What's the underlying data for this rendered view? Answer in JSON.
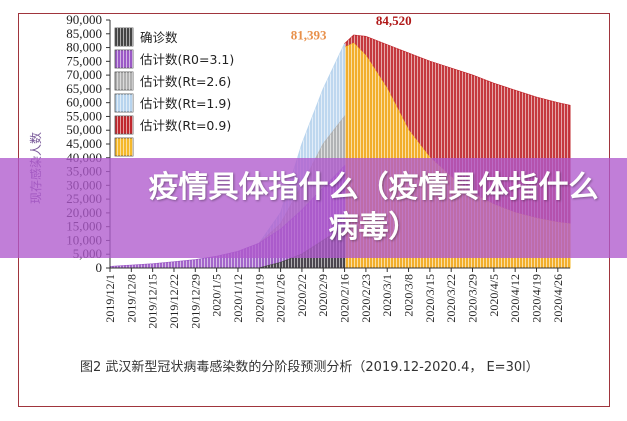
{
  "banner": {
    "line1": "疫情具体指什么（疫情具体指什么",
    "line2": "病毒）"
  },
  "caption": "图2  武汉新型冠状病毒感染数的分阶段预测分析（2019.12-2020.4， E=30l）",
  "chart_data": {
    "type": "bar",
    "title": "",
    "ylabel": "现存感染人数",
    "xlabel": "",
    "ylim": [
      0,
      90000
    ],
    "yticks": [
      "0",
      "5,000",
      "10,000",
      "15,000",
      "20,000",
      "25,000",
      "30,000",
      "35,000",
      "40,000",
      "45,000",
      "50,000",
      "55,000",
      "60,000",
      "65,000",
      "70,000",
      "75,000",
      "80,000",
      "85,000",
      "90,000"
    ],
    "xlim": [
      "2019-12-01",
      "2020-04-30"
    ],
    "xticks": [
      "2019/12/1",
      "2019/12/8",
      "2019/12/15",
      "2019/12/22",
      "2019/12/29",
      "2020/1/5",
      "2020/1/12",
      "2020/1/19",
      "2020/1/26",
      "2020/2/2",
      "2020/2/9",
      "2020/2/16",
      "2020/2/23",
      "2020/3/1",
      "2020/3/8",
      "2020/3/15",
      "2020/3/22",
      "2020/3/29",
      "2020/4/5",
      "2020/4/12",
      "2020/4/19",
      "2020/4/26"
    ],
    "annotations": [
      {
        "text": "81,393",
        "date": "2020-02-16",
        "value": 81393,
        "color": "#e8904a"
      },
      {
        "text": "84,520",
        "date": "2020-02-19",
        "value": 84520,
        "color": "#b01818"
      }
    ],
    "legend_placement": "top-left",
    "series": [
      {
        "name": "估计数(Rt=0.9)",
        "color": "#c0282e",
        "points": [
          [
            "2020-02-16",
            81393
          ],
          [
            "2020-02-19",
            84520
          ],
          [
            "2020-02-23",
            84000
          ],
          [
            "2020-03-01",
            81000
          ],
          [
            "2020-03-08",
            78000
          ],
          [
            "2020-03-15",
            75000
          ],
          [
            "2020-03-22",
            72500
          ],
          [
            "2020-03-29",
            70000
          ],
          [
            "2020-04-05",
            67000
          ],
          [
            "2020-04-12",
            64500
          ],
          [
            "2020-04-19",
            62000
          ],
          [
            "2020-04-26",
            60000
          ],
          [
            "2020-04-30",
            59000
          ]
        ]
      },
      {
        "name": "",
        "color": "#f5b82a",
        "points": [
          [
            "2020-02-16",
            80000
          ],
          [
            "2020-02-19",
            81500
          ],
          [
            "2020-02-23",
            77000
          ],
          [
            "2020-03-01",
            65000
          ],
          [
            "2020-03-08",
            50000
          ],
          [
            "2020-03-15",
            40000
          ],
          [
            "2020-03-22",
            33000
          ],
          [
            "2020-03-29",
            27000
          ],
          [
            "2020-04-05",
            23000
          ],
          [
            "2020-04-12",
            20000
          ],
          [
            "2020-04-19",
            18000
          ],
          [
            "2020-04-26",
            16500
          ],
          [
            "2020-04-30",
            16000
          ]
        ]
      },
      {
        "name": "估计数(Rt=1.9)",
        "color": "#b8d4ee",
        "points": [
          [
            "2020-01-19",
            9000
          ],
          [
            "2020-01-26",
            20000
          ],
          [
            "2020-02-02",
            45000
          ],
          [
            "2020-02-09",
            65000
          ],
          [
            "2020-02-16",
            81393
          ]
        ]
      },
      {
        "name": "估计数(Rt=2.6)",
        "color": "#b0b0b0",
        "points": [
          [
            "2020-01-19",
            9000
          ],
          [
            "2020-01-26",
            16000
          ],
          [
            "2020-02-02",
            30000
          ],
          [
            "2020-02-09",
            45000
          ],
          [
            "2020-02-16",
            55000
          ]
        ]
      },
      {
        "name": "估计数(R0=3.1)",
        "color": "#9b59c6",
        "points": [
          [
            "2019-12-01",
            500
          ],
          [
            "2019-12-08",
            1000
          ],
          [
            "2019-12-15",
            1500
          ],
          [
            "2019-12-22",
            2200
          ],
          [
            "2019-12-29",
            3000
          ],
          [
            "2020-01-05",
            4200
          ],
          [
            "2020-01-12",
            6000
          ],
          [
            "2020-01-19",
            9000
          ],
          [
            "2020-01-26",
            14000
          ],
          [
            "2020-02-02",
            21000
          ],
          [
            "2020-02-09",
            29000
          ],
          [
            "2020-02-16",
            37000
          ]
        ]
      },
      {
        "name": "确诊数",
        "color": "#444444",
        "points": [
          [
            "2020-01-19",
            0
          ],
          [
            "2020-01-26",
            2000
          ],
          [
            "2020-02-02",
            5000
          ],
          [
            "2020-02-09",
            10000
          ],
          [
            "2020-02-16",
            15000
          ]
        ]
      }
    ],
    "legend": [
      {
        "label": "确诊数",
        "color": "#444444"
      },
      {
        "label": "估计数(R0=3.1)",
        "color": "#9b59c6"
      },
      {
        "label": "估计数(Rt=2.6)",
        "color": "#b0b0b0"
      },
      {
        "label": "估计数(Rt=1.9)",
        "color": "#b8d4ee"
      },
      {
        "label": "估计数(Rt=0.9)",
        "color": "#c0282e"
      },
      {
        "label": "",
        "color": "#f5b82a"
      }
    ]
  }
}
